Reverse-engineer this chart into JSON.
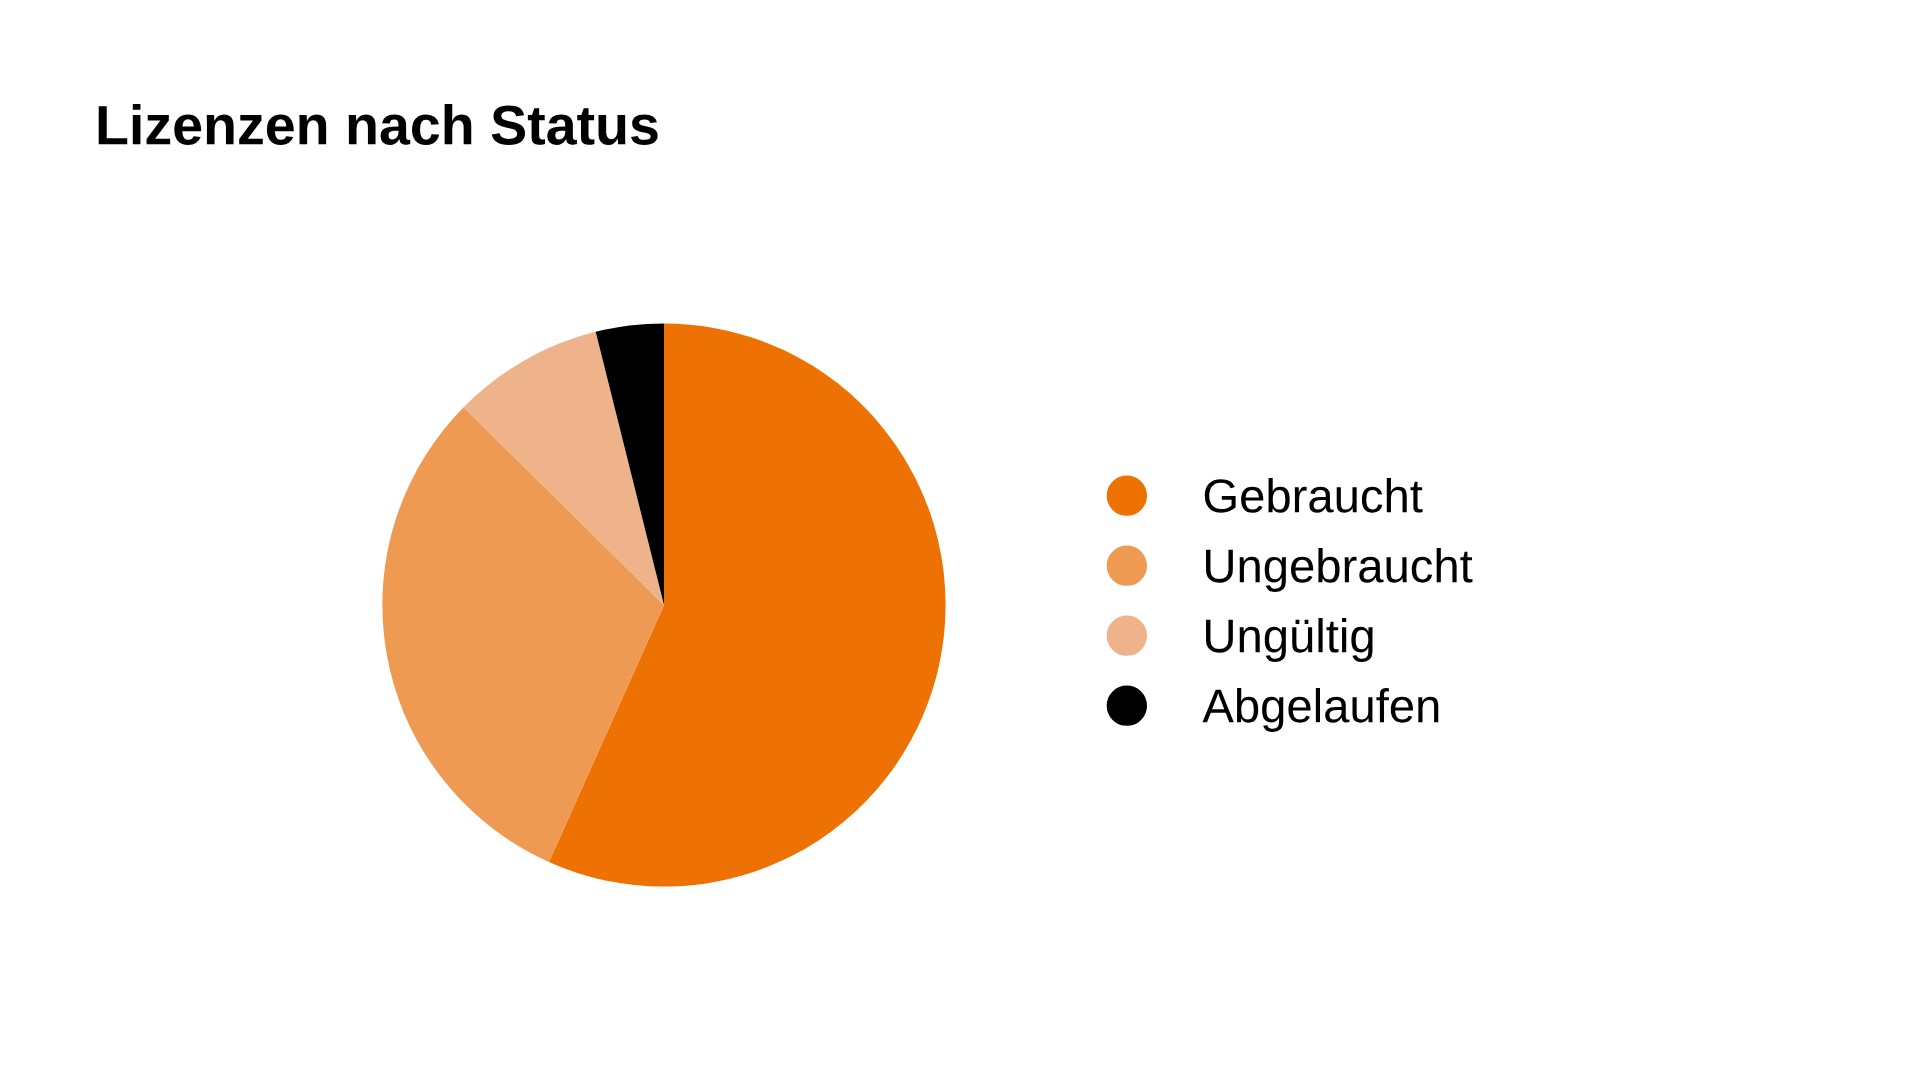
{
  "chart_data": {
    "type": "pie",
    "title": "Lizenzen nach Status",
    "categories": [
      "Gebraucht",
      "Ungebraucht",
      "Ungültig",
      "Abgelaufen"
    ],
    "values": [
      56.7,
      30.7,
      8.7,
      3.9
    ],
    "colors": [
      "#ee7203",
      "#ef9a52",
      "#eeb38b",
      "#000000"
    ],
    "legend": "right"
  }
}
